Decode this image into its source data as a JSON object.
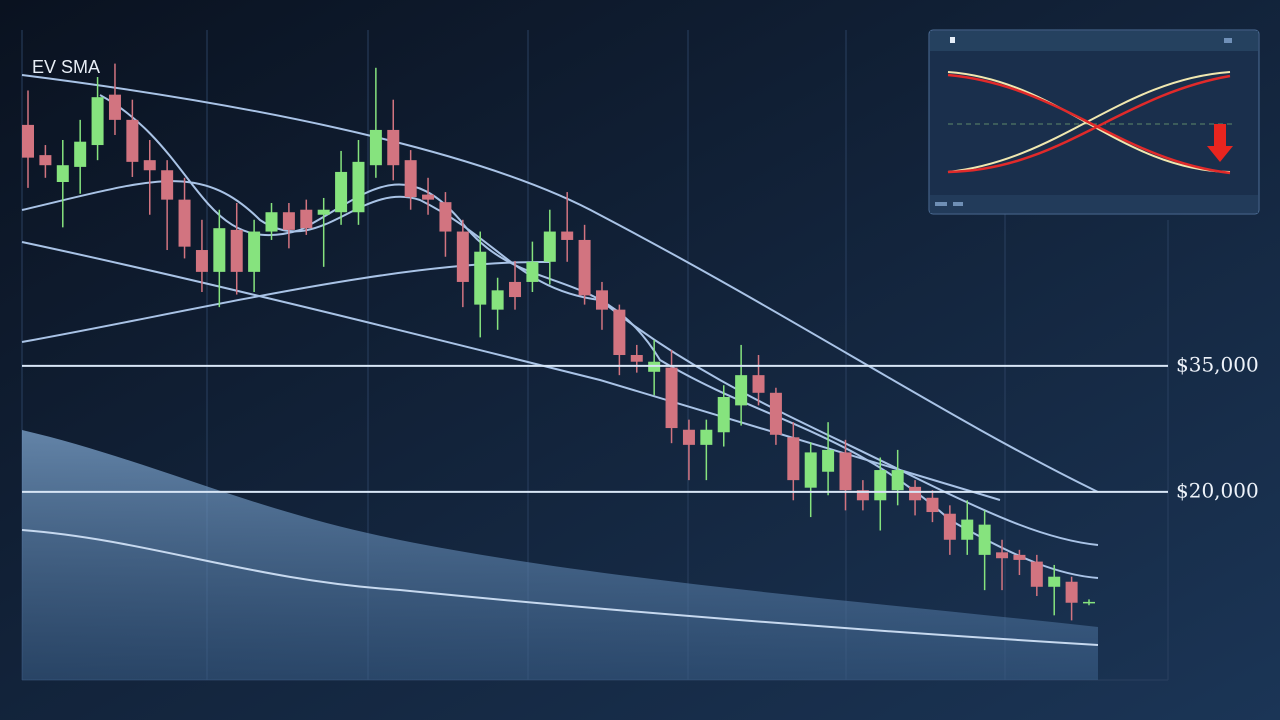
{
  "chart_data": {
    "type": "candlestick",
    "title": "EV SMA",
    "ylim": [
      -2400,
      75000
    ],
    "yticks": [
      {
        "value": 35000,
        "label": "$35,000"
      },
      {
        "value": 20000,
        "label": "$20,000"
      }
    ],
    "up_color": "#86e37e",
    "down_color": "#d27480",
    "open": [
      63700,
      60100,
      56900,
      58700,
      61300,
      67300,
      64300,
      59500,
      58300,
      54800,
      48800,
      46200,
      51200,
      46200,
      51000,
      53300,
      53600,
      53000,
      53300,
      53300,
      58900,
      63100,
      59500,
      55400,
      54500,
      51000,
      42300,
      41700,
      45000,
      45000,
      47400,
      51000,
      50000,
      44000,
      41700,
      36300,
      34300,
      34800,
      27400,
      25600,
      27100,
      30300,
      33900,
      31800,
      26500,
      20500,
      22400,
      24700,
      20200,
      19000,
      20200,
      20600,
      19300,
      17400,
      14300,
      12500,
      12800,
      12500,
      11700,
      8700,
      9300,
      6800
    ],
    "close": [
      59800,
      58900,
      58900,
      61700,
      67000,
      64300,
      59300,
      58300,
      54800,
      49200,
      46200,
      51400,
      46200,
      51000,
      53300,
      51200,
      51400,
      53600,
      58100,
      59300,
      63100,
      58900,
      55100,
      54800,
      51000,
      45000,
      48600,
      44000,
      43200,
      47400,
      51000,
      50000,
      43400,
      41700,
      36300,
      35500,
      35500,
      27600,
      25600,
      27400,
      31300,
      33900,
      31800,
      26800,
      21400,
      24700,
      25000,
      20200,
      19000,
      22600,
      22600,
      19000,
      17600,
      14300,
      16700,
      16100,
      12100,
      11900,
      8700,
      9900,
      6800,
      6900
    ],
    "high": [
      67800,
      61300,
      61900,
      64300,
      69400,
      71000,
      66700,
      61900,
      59500,
      57400,
      52400,
      53600,
      54400,
      52400,
      54400,
      54400,
      54800,
      55000,
      60600,
      61900,
      70500,
      66700,
      60700,
      57400,
      55700,
      52400,
      51000,
      45500,
      47500,
      49800,
      53600,
      55700,
      51800,
      45000,
      42300,
      37500,
      38100,
      36900,
      28600,
      28600,
      32700,
      37500,
      36300,
      32400,
      28300,
      25900,
      28300,
      26200,
      21400,
      24100,
      25000,
      21400,
      20200,
      18400,
      19000,
      17800,
      14300,
      13100,
      12500,
      11300,
      9900,
      7200
    ],
    "low": [
      56200,
      57400,
      51500,
      55500,
      59500,
      62500,
      57500,
      53000,
      48800,
      47800,
      43800,
      42000,
      43500,
      43800,
      50000,
      49000,
      50600,
      46800,
      51800,
      51800,
      57400,
      57100,
      53600,
      53000,
      48000,
      42000,
      38400,
      39300,
      41700,
      43800,
      44700,
      47400,
      42300,
      39300,
      33900,
      34200,
      31500,
      25800,
      21400,
      21400,
      25400,
      27900,
      30300,
      25600,
      19000,
      17000,
      19600,
      17800,
      17800,
      15400,
      18400,
      17200,
      16400,
      12500,
      12500,
      8300,
      8300,
      10100,
      7600,
      5300,
      4700,
      6500
    ]
  }
}
